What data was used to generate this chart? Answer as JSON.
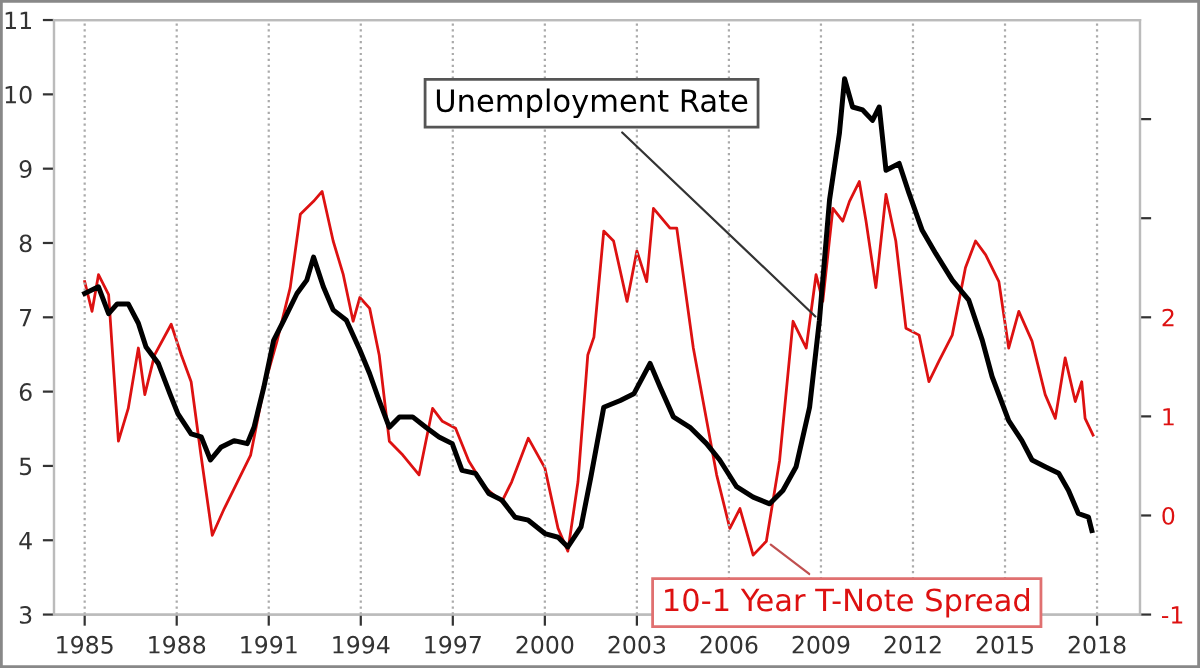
{
  "chart_data": {
    "type": "line",
    "xlim": [
      1984,
      2019.4
    ],
    "xticks": [
      1985,
      1988,
      1991,
      1994,
      1997,
      2000,
      2003,
      2006,
      2009,
      2012,
      2015,
      2018
    ],
    "ylim": [
      3,
      11
    ],
    "yticks": [
      3,
      4,
      5,
      6,
      7,
      8,
      9,
      10,
      11
    ],
    "y2lim": [
      -1,
      5
    ],
    "y2ticks": [
      -1,
      0,
      1,
      2,
      {
        "value": 3,
        "label": null
      },
      {
        "value": 4,
        "label": null
      }
    ],
    "grid": "x",
    "legend": false,
    "series": [
      {
        "name": "10-1 Year T-Note Spread",
        "color": "#dd1111",
        "axis": "y2",
        "x": [
          1985.0,
          1985.24,
          1985.45,
          1985.78,
          1986.1,
          1986.42,
          1986.75,
          1986.96,
          1987.28,
          1987.82,
          1988.15,
          1988.47,
          1988.79,
          1989.16,
          1989.55,
          1989.98,
          1990.41,
          1990.84,
          1991.27,
          1991.7,
          1992.03,
          1992.46,
          1992.74,
          1993.1,
          1993.43,
          1993.75,
          1993.97,
          1994.29,
          1994.6,
          1994.93,
          1995.37,
          1995.9,
          1996.34,
          1996.66,
          1997.09,
          1997.52,
          1998.06,
          1998.6,
          1998.92,
          1999.46,
          2000.0,
          2000.43,
          2000.75,
          2001.08,
          2001.4,
          2001.6,
          2001.92,
          2002.24,
          2002.68,
          2003.0,
          2003.32,
          2003.54,
          2004.08,
          2004.3,
          2004.84,
          2005.16,
          2005.6,
          2006.03,
          2006.36,
          2006.79,
          2007.22,
          2007.65,
          2008.09,
          2008.52,
          2008.84,
          2009.06,
          2009.39,
          2009.71,
          2009.93,
          2010.25,
          2010.47,
          2010.79,
          2011.12,
          2011.44,
          2011.77,
          2012.2,
          2012.52,
          2012.85,
          2013.28,
          2013.71,
          2014.04,
          2014.37,
          2014.8,
          2015.12,
          2015.45,
          2015.88,
          2016.31,
          2016.64,
          2016.96,
          2017.29,
          2017.5,
          2017.61,
          2017.87
        ],
        "values": [
          2.36,
          2.06,
          2.43,
          2.23,
          0.75,
          1.08,
          1.69,
          1.22,
          1.62,
          1.93,
          1.62,
          1.35,
          0.61,
          -0.2,
          0.07,
          0.34,
          0.61,
          1.29,
          1.76,
          2.3,
          3.04,
          3.17,
          3.27,
          2.77,
          2.43,
          1.96,
          2.2,
          2.09,
          1.62,
          0.75,
          0.61,
          0.41,
          1.08,
          0.95,
          0.88,
          0.55,
          0.28,
          0.14,
          0.34,
          0.78,
          0.48,
          -0.13,
          -0.36,
          0.34,
          1.62,
          1.8,
          2.87,
          2.77,
          2.16,
          2.67,
          2.36,
          3.1,
          2.9,
          2.9,
          1.69,
          1.15,
          0.41,
          -0.13,
          0.07,
          -0.4,
          -0.26,
          0.55,
          1.96,
          1.69,
          2.43,
          2.16,
          3.1,
          2.97,
          3.17,
          3.37,
          2.97,
          2.3,
          3.24,
          2.77,
          1.89,
          1.82,
          1.35,
          1.56,
          1.82,
          2.5,
          2.77,
          2.63,
          2.36,
          1.69,
          2.06,
          1.76,
          1.22,
          0.98,
          1.59,
          1.15,
          1.35,
          0.98,
          0.81
        ]
      },
      {
        "name": "Unemployment Rate",
        "color": "#000000",
        "x": [
          1985.0,
          1985.45,
          1985.78,
          1986.06,
          1986.42,
          1986.75,
          1987.0,
          1987.4,
          1987.78,
          1988.04,
          1988.47,
          1988.8,
          1989.1,
          1989.44,
          1989.87,
          1990.3,
          1990.52,
          1990.84,
          1991.16,
          1991.49,
          1991.92,
          1992.24,
          1992.46,
          1992.78,
          1993.1,
          1993.53,
          1993.97,
          1994.29,
          1994.6,
          1994.93,
          1995.26,
          1995.69,
          1996.12,
          1996.55,
          1996.98,
          1997.3,
          1997.74,
          1998.17,
          1998.6,
          1999.03,
          1999.46,
          2000.0,
          2000.43,
          2000.75,
          2001.18,
          2001.5,
          2001.92,
          2002.46,
          2002.9,
          2003.43,
          2003.76,
          2004.19,
          2004.73,
          2005.27,
          2005.7,
          2006.25,
          2006.79,
          2007.33,
          2007.76,
          2008.19,
          2008.63,
          2008.95,
          2009.28,
          2009.6,
          2009.77,
          2010.03,
          2010.36,
          2010.68,
          2010.9,
          2011.12,
          2011.55,
          2011.87,
          2012.3,
          2012.74,
          2013.28,
          2013.82,
          2014.26,
          2014.58,
          2015.12,
          2015.55,
          2015.88,
          2016.31,
          2016.75,
          2017.07,
          2017.39,
          2017.72,
          2017.83
        ],
        "values": [
          7.32,
          7.41,
          7.05,
          7.18,
          7.18,
          6.92,
          6.6,
          6.38,
          5.97,
          5.7,
          5.43,
          5.39,
          5.08,
          5.25,
          5.34,
          5.3,
          5.52,
          6.06,
          6.69,
          6.96,
          7.32,
          7.5,
          7.81,
          7.41,
          7.1,
          6.96,
          6.56,
          6.24,
          5.88,
          5.52,
          5.66,
          5.66,
          5.52,
          5.39,
          5.3,
          4.94,
          4.9,
          4.63,
          4.54,
          4.31,
          4.27,
          4.09,
          4.04,
          3.91,
          4.18,
          4.85,
          5.79,
          5.88,
          5.97,
          6.38,
          6.06,
          5.66,
          5.52,
          5.3,
          5.08,
          4.72,
          4.58,
          4.49,
          4.67,
          4.99,
          5.79,
          6.96,
          8.58,
          9.47,
          10.21,
          9.83,
          9.79,
          9.65,
          9.83,
          8.98,
          9.07,
          8.67,
          8.17,
          7.86,
          7.5,
          7.23,
          6.69,
          6.2,
          5.61,
          5.34,
          5.08,
          4.99,
          4.9,
          4.67,
          4.36,
          4.31,
          4.13
        ]
      }
    ]
  }
}
